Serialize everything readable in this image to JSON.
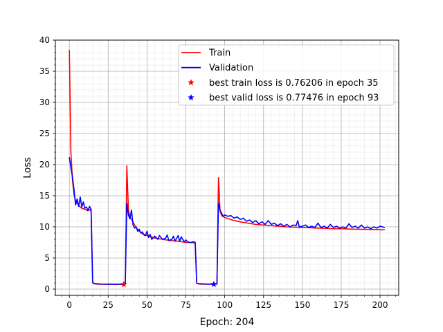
{
  "chart_data": {
    "type": "line",
    "title": "",
    "xlabel": "Epoch: 204",
    "ylabel": "Loss",
    "xlim": [
      -9,
      212
    ],
    "ylim": [
      -1,
      40
    ],
    "x_ticks": [
      0,
      25,
      50,
      75,
      100,
      125,
      150,
      175,
      200
    ],
    "y_ticks": [
      0,
      5,
      10,
      15,
      20,
      25,
      30,
      35,
      40
    ],
    "x_minor_step": 5,
    "y_minor_step": 1,
    "grid": true,
    "legend_position": "top-right",
    "series": [
      {
        "name": "Train",
        "color": "#ff0000",
        "points": [
          [
            0,
            38.4
          ],
          [
            1,
            22
          ],
          [
            2,
            17.5
          ],
          [
            3,
            15.2
          ],
          [
            4,
            14.2
          ],
          [
            5,
            13.8
          ],
          [
            6,
            13.5
          ],
          [
            7,
            13.2
          ],
          [
            8,
            13.0
          ],
          [
            9,
            12.9
          ],
          [
            10,
            12.8
          ],
          [
            11,
            12.7
          ],
          [
            12,
            12.6
          ],
          [
            13,
            12.8
          ],
          [
            14,
            12.5
          ],
          [
            15,
            1.0
          ],
          [
            16,
            0.85
          ],
          [
            18,
            0.8
          ],
          [
            20,
            0.78
          ],
          [
            25,
            0.77
          ],
          [
            30,
            0.77
          ],
          [
            35,
            0.762
          ],
          [
            36,
            0.77
          ],
          [
            37,
            19.8
          ],
          [
            38,
            12.8
          ],
          [
            39,
            11.5
          ],
          [
            40,
            11.2
          ],
          [
            41,
            10.8
          ],
          [
            42,
            10.3
          ],
          [
            43,
            9.9
          ],
          [
            44,
            9.6
          ],
          [
            45,
            9.3
          ],
          [
            46,
            9.1
          ],
          [
            47,
            8.9
          ],
          [
            48,
            8.8
          ],
          [
            50,
            8.6
          ],
          [
            55,
            8.2
          ],
          [
            60,
            8.0
          ],
          [
            65,
            7.8
          ],
          [
            70,
            7.7
          ],
          [
            75,
            7.5
          ],
          [
            80,
            7.45
          ],
          [
            81,
            7.4
          ],
          [
            82,
            0.9
          ],
          [
            84,
            0.8
          ],
          [
            90,
            0.78
          ],
          [
            95,
            0.8
          ],
          [
            96,
            17.9
          ],
          [
            97,
            12.6
          ],
          [
            98,
            11.8
          ],
          [
            100,
            11.5
          ],
          [
            105,
            11.1
          ],
          [
            110,
            10.8
          ],
          [
            115,
            10.6
          ],
          [
            120,
            10.4
          ],
          [
            125,
            10.3
          ],
          [
            130,
            10.2
          ],
          [
            135,
            10.1
          ],
          [
            140,
            10.0
          ],
          [
            145,
            9.95
          ],
          [
            150,
            9.9
          ],
          [
            155,
            9.85
          ],
          [
            160,
            9.8
          ],
          [
            165,
            9.75
          ],
          [
            170,
            9.7
          ],
          [
            175,
            9.7
          ],
          [
            180,
            9.65
          ],
          [
            185,
            9.62
          ],
          [
            190,
            9.6
          ],
          [
            195,
            9.58
          ],
          [
            200,
            9.55
          ],
          [
            203,
            9.55
          ]
        ]
      },
      {
        "name": "Validation",
        "color": "#0000ff",
        "points": [
          [
            0,
            21.2
          ],
          [
            1,
            19.5
          ],
          [
            2,
            18.0
          ],
          [
            3,
            16.0
          ],
          [
            4,
            13.5
          ],
          [
            5,
            14.5
          ],
          [
            6,
            13.3
          ],
          [
            7,
            14.8
          ],
          [
            8,
            13.2
          ],
          [
            9,
            14.0
          ],
          [
            10,
            13.0
          ],
          [
            11,
            13.2
          ],
          [
            12,
            12.6
          ],
          [
            13,
            13.3
          ],
          [
            14,
            12.8
          ],
          [
            15,
            1.1
          ],
          [
            16,
            0.9
          ],
          [
            18,
            0.85
          ],
          [
            20,
            0.82
          ],
          [
            25,
            0.8
          ],
          [
            30,
            0.79
          ],
          [
            35,
            0.8
          ],
          [
            36,
            0.85
          ],
          [
            37,
            13.8
          ],
          [
            38,
            11.9
          ],
          [
            39,
            11.3
          ],
          [
            40,
            12.7
          ],
          [
            41,
            10.3
          ],
          [
            42,
            9.8
          ],
          [
            43,
            10.0
          ],
          [
            44,
            9.3
          ],
          [
            45,
            9.6
          ],
          [
            46,
            9.0
          ],
          [
            47,
            9.2
          ],
          [
            48,
            8.7
          ],
          [
            49,
            8.6
          ],
          [
            50,
            9.3
          ],
          [
            51,
            8.3
          ],
          [
            52,
            8.8
          ],
          [
            53,
            8.0
          ],
          [
            55,
            8.5
          ],
          [
            57,
            8.0
          ],
          [
            58,
            8.6
          ],
          [
            60,
            8.0
          ],
          [
            62,
            8.2
          ],
          [
            63,
            8.7
          ],
          [
            64,
            7.8
          ],
          [
            66,
            8.0
          ],
          [
            67,
            8.5
          ],
          [
            68,
            7.7
          ],
          [
            70,
            8.6
          ],
          [
            71,
            7.7
          ],
          [
            72,
            8.4
          ],
          [
            74,
            7.6
          ],
          [
            75,
            7.9
          ],
          [
            76,
            7.6
          ],
          [
            78,
            7.5
          ],
          [
            80,
            7.6
          ],
          [
            81,
            7.5
          ],
          [
            82,
            0.95
          ],
          [
            84,
            0.85
          ],
          [
            90,
            0.8
          ],
          [
            95,
            0.82
          ],
          [
            96,
            13.8
          ],
          [
            97,
            12.7
          ],
          [
            98,
            12.2
          ],
          [
            99,
            11.7
          ],
          [
            100,
            11.9
          ],
          [
            102,
            11.7
          ],
          [
            104,
            11.8
          ],
          [
            106,
            11.4
          ],
          [
            108,
            11.6
          ],
          [
            110,
            11.2
          ],
          [
            112,
            11.4
          ],
          [
            114,
            10.9
          ],
          [
            116,
            11.1
          ],
          [
            118,
            10.7
          ],
          [
            120,
            11.0
          ],
          [
            122,
            10.5
          ],
          [
            124,
            10.8
          ],
          [
            126,
            10.4
          ],
          [
            128,
            11.0
          ],
          [
            130,
            10.4
          ],
          [
            132,
            10.6
          ],
          [
            134,
            10.2
          ],
          [
            136,
            10.5
          ],
          [
            138,
            10.1
          ],
          [
            140,
            10.4
          ],
          [
            142,
            10.0
          ],
          [
            144,
            10.3
          ],
          [
            146,
            10.2
          ],
          [
            147,
            11.0
          ],
          [
            148,
            10.0
          ],
          [
            150,
            10.1
          ],
          [
            152,
            10.3
          ],
          [
            154,
            9.9
          ],
          [
            156,
            10.1
          ],
          [
            158,
            9.9
          ],
          [
            160,
            10.6
          ],
          [
            162,
            9.9
          ],
          [
            164,
            10.1
          ],
          [
            166,
            9.8
          ],
          [
            168,
            10.4
          ],
          [
            170,
            9.9
          ],
          [
            172,
            10.1
          ],
          [
            174,
            9.8
          ],
          [
            176,
            10.0
          ],
          [
            178,
            9.8
          ],
          [
            180,
            10.5
          ],
          [
            182,
            9.9
          ],
          [
            184,
            10.1
          ],
          [
            186,
            9.8
          ],
          [
            188,
            10.3
          ],
          [
            190,
            9.8
          ],
          [
            192,
            10.0
          ],
          [
            194,
            9.7
          ],
          [
            196,
            10.0
          ],
          [
            198,
            9.8
          ],
          [
            200,
            10.1
          ],
          [
            203,
            9.9
          ]
        ]
      }
    ],
    "markers": [
      {
        "name": "best train loss is 0.76206 in epoch 35",
        "color": "#ff0000",
        "symbol": "star",
        "x": 35,
        "y": 0.76206
      },
      {
        "name": "best valid loss is 0.77476 in epoch 93",
        "color": "#0000ff",
        "symbol": "star",
        "x": 93,
        "y": 0.77476
      }
    ],
    "legend": [
      {
        "label": "Train",
        "kind": "line",
        "color": "#ff0000"
      },
      {
        "label": "Validation",
        "kind": "line",
        "color": "#0000ff"
      },
      {
        "label": "best train loss is 0.76206 in epoch 35",
        "kind": "star",
        "color": "#ff0000"
      },
      {
        "label": "best valid loss is 0.77476 in epoch 93",
        "kind": "star",
        "color": "#0000ff"
      }
    ]
  }
}
